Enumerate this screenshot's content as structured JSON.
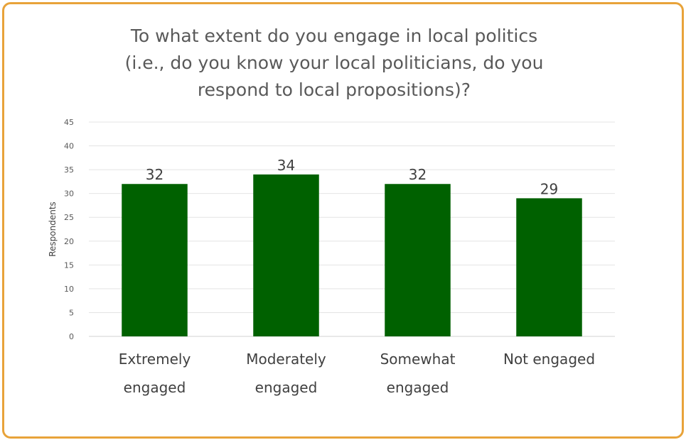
{
  "chart_data": {
    "type": "bar",
    "title_lines": [
      "To what extent do you engage in local politics",
      "(i.e., do you know your local politicians, do you",
      "respond to local propositions)?"
    ],
    "categories": [
      [
        "Extremely",
        "engaged"
      ],
      [
        "Moderately",
        "engaged"
      ],
      [
        "Somewhat",
        "engaged"
      ],
      [
        "Not engaged"
      ]
    ],
    "values": [
      32,
      34,
      32,
      29
    ],
    "data_labels": [
      "32",
      "34",
      "32",
      "29"
    ],
    "ylabel": "Respondents",
    "xlabel": "",
    "ylim": [
      0,
      45
    ],
    "yticks": [
      0,
      5,
      10,
      15,
      20,
      25,
      30,
      35,
      40,
      45
    ],
    "grid": true,
    "legend": "none",
    "bar_color": "#006100",
    "frame_color": "#e8a33a"
  }
}
